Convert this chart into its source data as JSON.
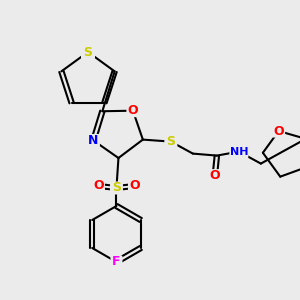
{
  "bg_color": "#ebebeb",
  "bond_color": "#000000",
  "atom_colors": {
    "S": "#cccc00",
    "O": "#ff0000",
    "N": "#0000ff",
    "F": "#ff00ff",
    "H": "#4db8b8"
  },
  "line_width": 1.5,
  "font_size": 9
}
